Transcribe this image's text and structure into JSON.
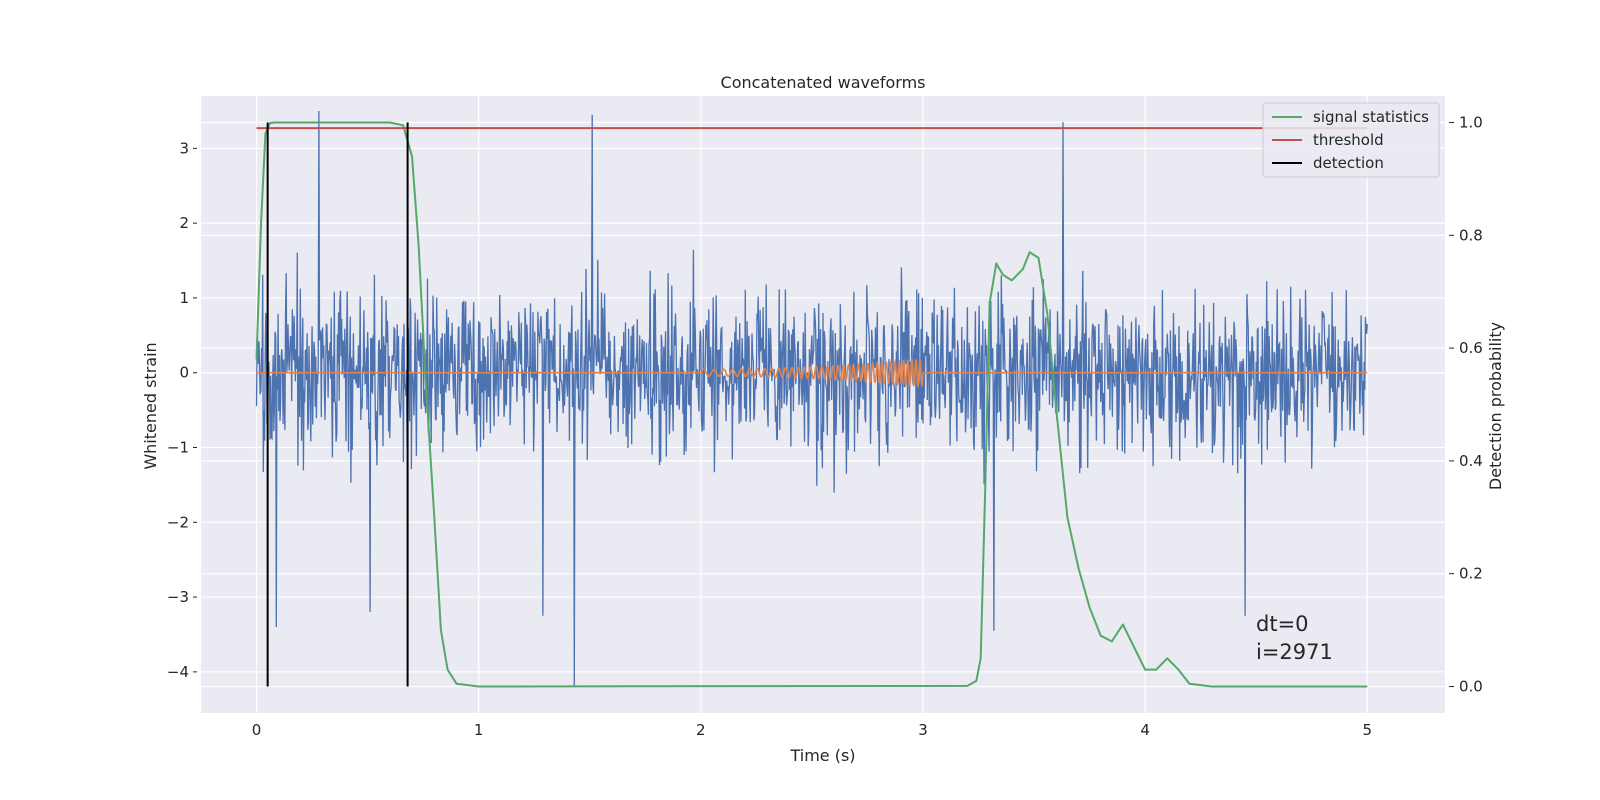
{
  "chart_data": {
    "type": "line",
    "title": "Concatenated waveforms",
    "xlabel": "Time (s)",
    "ylabel": "Whitened strain",
    "y2label": "Detection probability",
    "xlim": [
      -0.25,
      5.35
    ],
    "ylim": [
      -4.55,
      3.7
    ],
    "y2lim": [
      -0.047,
      1.047
    ],
    "xticks": [
      0,
      1,
      2,
      3,
      4,
      5
    ],
    "yticks": [
      -4,
      -3,
      -2,
      -1,
      0,
      1,
      2,
      3
    ],
    "y2ticks": [
      0.0,
      0.2,
      0.4,
      0.6,
      0.8,
      1.0
    ],
    "xtick_labels": [
      "0",
      "1",
      "2",
      "3",
      "4",
      "5"
    ],
    "ytick_labels": [
      "−4",
      "−3",
      "−2",
      "−1",
      "0",
      "1",
      "2",
      "3"
    ],
    "y2tick_labels": [
      "0.0",
      "0.2",
      "0.4",
      "0.6",
      "0.8",
      "1.0"
    ],
    "grid": true,
    "legend_position": "top-right",
    "legend": [
      "signal statistics",
      "threshold",
      "detection"
    ],
    "annotations": [
      "dt=0",
      "i=2971"
    ],
    "series": [
      {
        "description_axis": "left",
        "color": "#4c72b0",
        "kind": "noise",
        "x_range": [
          0,
          5
        ],
        "approx_std": 0.75,
        "spikes": [
          {
            "x": 0.28,
            "y": 3.5
          },
          {
            "x": 1.51,
            "y": 3.45
          },
          {
            "x": 3.63,
            "y": 3.35
          },
          {
            "x": 1.43,
            "y": -4.2
          },
          {
            "x": 1.29,
            "y": -3.25
          },
          {
            "x": 0.51,
            "y": -3.2
          },
          {
            "x": 3.32,
            "y": -3.45
          },
          {
            "x": 4.45,
            "y": -3.25
          },
          {
            "x": 0.09,
            "y": -3.4
          }
        ]
      },
      {
        "description_axis": "left",
        "color": "#dd8452",
        "kind": "chirp",
        "x_range": [
          0,
          5
        ],
        "chirp_start": 2.0,
        "chirp_end": 3.0,
        "chirp_max_amplitude": 0.18
      },
      {
        "name": "signal statistics",
        "axis": "right",
        "color": "#55a868",
        "x": [
          0,
          0.02,
          0.04,
          0.06,
          0.08,
          0.1,
          0.6,
          0.66,
          0.7,
          0.73,
          0.76,
          0.8,
          0.83,
          0.86,
          0.9,
          1.0,
          3.2,
          3.24,
          3.26,
          3.28,
          3.3,
          3.33,
          3.36,
          3.4,
          3.45,
          3.48,
          3.52,
          3.56,
          3.6,
          3.65,
          3.7,
          3.75,
          3.8,
          3.85,
          3.9,
          3.95,
          4.0,
          4.05,
          4.1,
          4.15,
          4.2,
          4.3,
          4.5,
          5.0
        ],
        "values": [
          0.58,
          0.82,
          0.98,
          0.999,
          1.0,
          1.0,
          1.0,
          0.995,
          0.94,
          0.78,
          0.55,
          0.3,
          0.1,
          0.03,
          0.005,
          0.0,
          0.001,
          0.01,
          0.05,
          0.35,
          0.68,
          0.75,
          0.73,
          0.72,
          0.74,
          0.77,
          0.76,
          0.66,
          0.49,
          0.3,
          0.21,
          0.14,
          0.09,
          0.08,
          0.11,
          0.07,
          0.03,
          0.03,
          0.05,
          0.03,
          0.005,
          0.0,
          0.0,
          0.0
        ]
      },
      {
        "name": "threshold",
        "axis": "right",
        "color": "#c44e52",
        "x": [
          0,
          5
        ],
        "values": [
          0.99,
          0.99
        ]
      },
      {
        "name": "detection",
        "axis": "right",
        "color": "#000000",
        "kind": "vlines",
        "x": [
          0.05,
          0.68
        ],
        "ymin": 0.0,
        "ymax": 1.0
      }
    ]
  },
  "style": {
    "axes_bg": "#eaeaf2",
    "grid_color": "#ffffff",
    "text_color": "#262626"
  }
}
